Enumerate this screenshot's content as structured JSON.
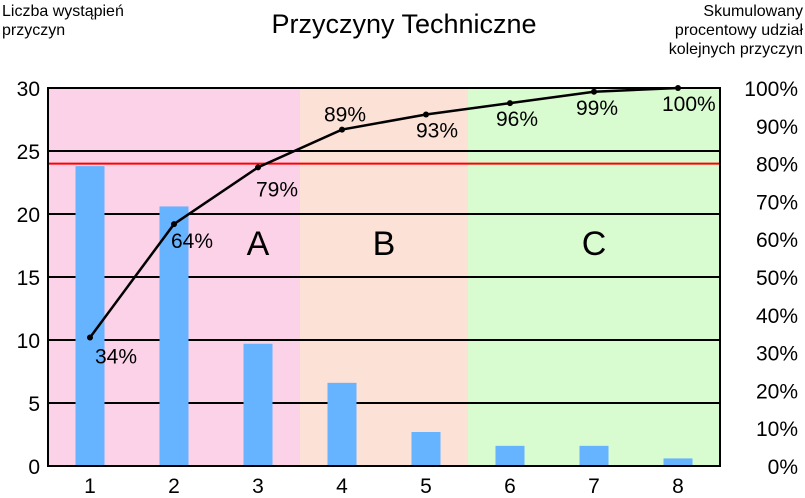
{
  "chart_data": {
    "type": "bar",
    "title": "Przyczyny Techniczne",
    "ylabel": "Liczba wystąpień przyczyn",
    "y2label": "Skumulowany procentowy udział kolejnych przyczyn",
    "categories": [
      "1",
      "2",
      "3",
      "4",
      "5",
      "6",
      "7",
      "8"
    ],
    "ylim": [
      0,
      30
    ],
    "yticks": [
      "0",
      "5",
      "10",
      "15",
      "20",
      "25",
      "30"
    ],
    "y2lim": [
      0,
      100
    ],
    "y2ticks": [
      "0%",
      "10%",
      "20%",
      "30%",
      "40%",
      "50%",
      "60%",
      "70%",
      "80%",
      "90%",
      "100%"
    ],
    "series": [
      {
        "type": "bar",
        "values": [
          23.8,
          20.6,
          9.7,
          6.6,
          2.7,
          1.6,
          1.6,
          0.6
        ],
        "color": "#66b3ff"
      },
      {
        "type": "line",
        "axis": "right",
        "values": [
          34,
          64,
          79,
          89,
          93,
          96,
          99,
          100
        ],
        "labels": [
          "34%",
          "64%",
          "79%",
          "89%",
          "93%",
          "96%",
          "99%",
          "100%"
        ],
        "color": "#000000"
      }
    ],
    "threshold": {
      "value": 80,
      "axis": "right",
      "color": "#ff0000"
    },
    "zones": [
      {
        "label": "A",
        "categories": [
          1,
          3
        ],
        "color": "#fcd2e8"
      },
      {
        "label": "B",
        "categories": [
          4,
          5
        ],
        "color": "#fce1d7"
      },
      {
        "label": "C",
        "categories": [
          6,
          8
        ],
        "color": "#d9fbd0"
      }
    ],
    "grid": true,
    "legend": "none"
  }
}
